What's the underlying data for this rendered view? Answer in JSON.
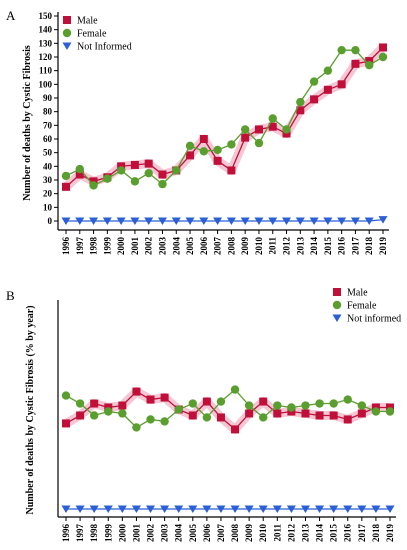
{
  "chart_data": [
    {
      "type": "line",
      "panel_label": "A",
      "ylabel": "Number of deaths by Cystic Fibrosis",
      "ylim": [
        0,
        150
      ],
      "yticks": [
        0,
        10,
        20,
        30,
        40,
        50,
        60,
        70,
        80,
        90,
        100,
        110,
        120,
        130,
        140,
        150
      ],
      "categories": [
        "1996",
        "1997",
        "1998",
        "1999",
        "2000",
        "2001",
        "2002",
        "2003",
        "2004",
        "2005",
        "2006",
        "2007",
        "2008",
        "2009",
        "2010",
        "2011",
        "2012",
        "2013",
        "2014",
        "2015",
        "2016",
        "2017",
        "2018",
        "2019"
      ],
      "legend_position": "top-left",
      "series": [
        {
          "name": "Male",
          "color": "#c0103a",
          "marker": "square",
          "values": [
            25,
            34,
            29,
            32,
            40,
            41,
            42,
            34,
            37,
            48,
            60,
            44,
            37,
            61,
            67,
            69,
            64,
            81,
            89,
            96,
            100,
            115,
            117,
            127
          ]
        },
        {
          "name": "Female",
          "color": "#5a9e2f",
          "marker": "circle",
          "values": [
            33,
            38,
            26,
            31,
            37,
            29,
            35,
            27,
            37,
            55,
            51,
            52,
            56,
            67,
            57,
            75,
            67,
            87,
            102,
            110,
            125,
            125,
            114,
            120
          ]
        },
        {
          "name": "Not Informed",
          "color": "#2a5fd6",
          "marker": "triangle-down",
          "values": [
            0,
            0,
            0,
            0,
            0,
            0,
            0,
            0,
            0,
            0,
            0,
            0,
            0,
            0,
            0,
            0,
            0,
            0,
            0,
            0,
            0,
            0,
            0,
            1
          ]
        }
      ]
    },
    {
      "type": "line",
      "panel_label": "B",
      "ylabel": "Number of deaths by Cystic Fibrosis (% by year)",
      "ylim": [
        0,
        100
      ],
      "categories": [
        "1996",
        "1997",
        "1998",
        "1999",
        "2000",
        "2001",
        "2002",
        "2003",
        "2004",
        "2005",
        "2006",
        "2007",
        "2008",
        "2009",
        "2010",
        "2011",
        "2012",
        "2013",
        "2014",
        "2015",
        "2016",
        "2017",
        "2018",
        "2019"
      ],
      "legend_position": "top-right",
      "series": [
        {
          "name": "Male",
          "color": "#c0103a",
          "marker": "square",
          "values": [
            43,
            47,
            53,
            51,
            52,
            59,
            55,
            56,
            50,
            47,
            54,
            46,
            40,
            48,
            54,
            48,
            49,
            48,
            47,
            47,
            45,
            48,
            51,
            51
          ]
        },
        {
          "name": "Female",
          "color": "#5a9e2f",
          "marker": "circle",
          "values": [
            57,
            53,
            47,
            49,
            48,
            41,
            45,
            44,
            50,
            53,
            46,
            54,
            60,
            52,
            46,
            52,
            51,
            52,
            53,
            53,
            55,
            52,
            49,
            49
          ]
        },
        {
          "name": "Not informed",
          "color": "#2a5fd6",
          "marker": "triangle-down",
          "values": [
            0,
            0,
            0,
            0,
            0,
            0,
            0,
            0,
            0,
            0,
            0,
            0,
            0,
            0,
            0,
            0,
            0,
            0,
            0,
            0,
            0,
            0,
            0,
            0
          ]
        }
      ]
    }
  ]
}
